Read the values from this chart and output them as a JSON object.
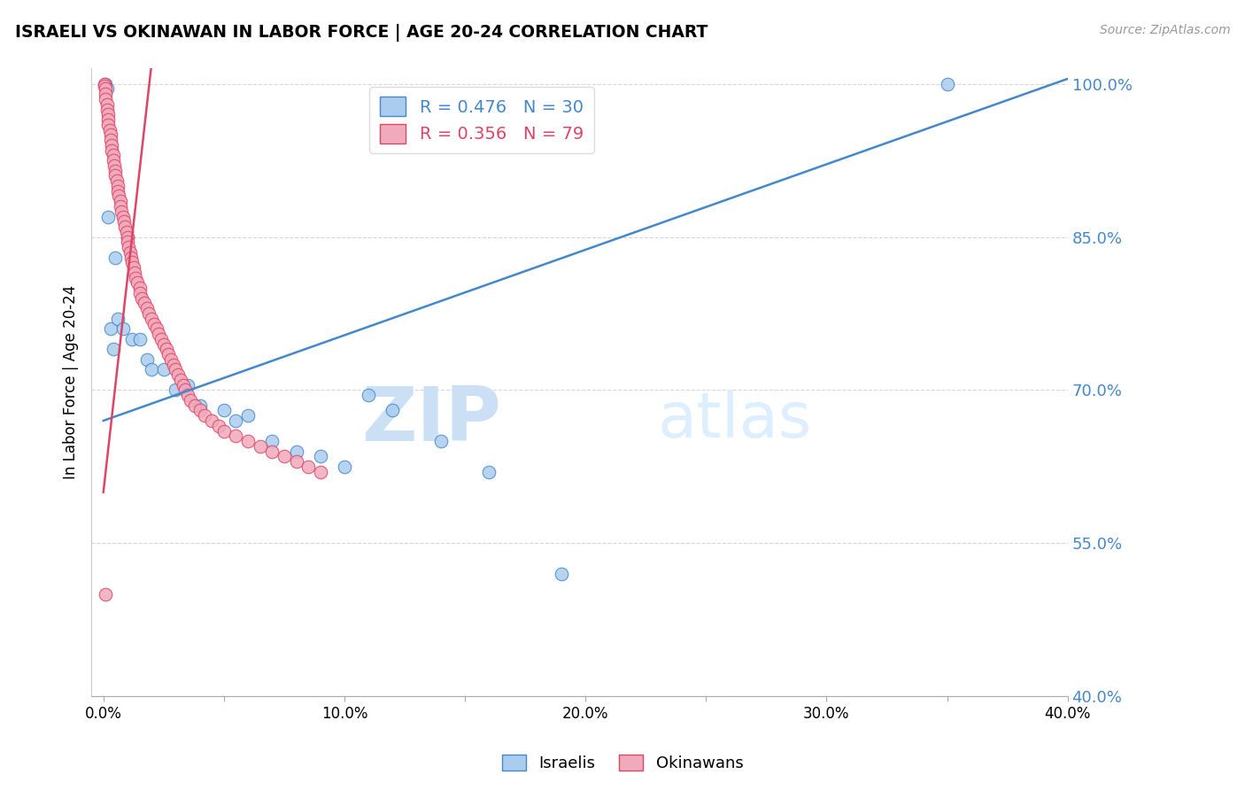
{
  "title": "ISRAELI VS OKINAWAN IN LABOR FORCE | AGE 20-24 CORRELATION CHART",
  "source_text": "Source: ZipAtlas.com",
  "ylabel": "In Labor Force | Age 20-24",
  "xlim": [
    -0.5,
    40.0
  ],
  "ylim": [
    40.0,
    101.5
  ],
  "yticks": [
    40.0,
    55.0,
    70.0,
    85.0,
    100.0
  ],
  "ytick_labels": [
    "40.0%",
    "55.0%",
    "70.0%",
    "85.0%",
    "100.0%"
  ],
  "xticks": [
    0.0,
    5.0,
    10.0,
    15.0,
    20.0,
    25.0,
    30.0,
    35.0,
    40.0
  ],
  "xtick_labels": [
    "0.0%",
    "",
    "10.0%",
    "",
    "20.0%",
    "",
    "30.0%",
    "",
    "40.0%"
  ],
  "israeli_color": "#aaccee",
  "okinawan_color": "#f0aabb",
  "israeli_line_color": "#4488cc",
  "okinawan_line_color": "#dd4466",
  "legend_R_israeli": "R = 0.476",
  "legend_N_israeli": "N = 30",
  "legend_R_okinawan": "R = 0.356",
  "legend_N_okinawan": "N = 79",
  "israeli_x": [
    0.1,
    0.15,
    0.2,
    0.3,
    0.4,
    0.5,
    0.6,
    0.8,
    1.0,
    1.2,
    1.5,
    1.8,
    2.0,
    2.5,
    3.0,
    3.5,
    4.0,
    5.0,
    5.5,
    6.0,
    7.0,
    8.0,
    9.0,
    10.0,
    11.0,
    12.0,
    14.0,
    16.0,
    19.0,
    35.0
  ],
  "israeli_y": [
    100.0,
    99.5,
    87.0,
    76.0,
    74.0,
    83.0,
    77.0,
    76.0,
    85.0,
    75.0,
    75.0,
    73.0,
    72.0,
    72.0,
    70.0,
    70.5,
    68.5,
    68.0,
    67.0,
    67.5,
    65.0,
    64.0,
    63.5,
    62.5,
    69.5,
    68.0,
    65.0,
    62.0,
    52.0,
    100.0
  ],
  "okinawan_x": [
    0.05,
    0.05,
    0.1,
    0.1,
    0.1,
    0.15,
    0.15,
    0.2,
    0.2,
    0.2,
    0.25,
    0.3,
    0.3,
    0.35,
    0.35,
    0.4,
    0.4,
    0.45,
    0.5,
    0.5,
    0.55,
    0.6,
    0.6,
    0.65,
    0.7,
    0.7,
    0.75,
    0.8,
    0.85,
    0.9,
    0.95,
    1.0,
    1.0,
    1.05,
    1.1,
    1.15,
    1.2,
    1.25,
    1.3,
    1.35,
    1.4,
    1.5,
    1.5,
    1.6,
    1.7,
    1.8,
    1.9,
    2.0,
    2.1,
    2.2,
    2.3,
    2.4,
    2.5,
    2.6,
    2.7,
    2.8,
    2.9,
    3.0,
    3.1,
    3.2,
    3.3,
    3.4,
    3.5,
    3.6,
    3.8,
    4.0,
    4.2,
    4.5,
    4.8,
    5.0,
    5.5,
    6.0,
    6.5,
    7.0,
    7.5,
    8.0,
    8.5,
    9.0,
    0.08
  ],
  "okinawan_y": [
    100.0,
    99.8,
    99.5,
    99.0,
    98.5,
    98.0,
    97.5,
    97.0,
    96.5,
    96.0,
    95.5,
    95.0,
    94.5,
    94.0,
    93.5,
    93.0,
    92.5,
    92.0,
    91.5,
    91.0,
    90.5,
    90.0,
    89.5,
    89.0,
    88.5,
    88.0,
    87.5,
    87.0,
    86.5,
    86.0,
    85.5,
    85.0,
    84.5,
    84.0,
    83.5,
    83.0,
    82.5,
    82.0,
    81.5,
    81.0,
    80.5,
    80.0,
    79.5,
    79.0,
    78.5,
    78.0,
    77.5,
    77.0,
    76.5,
    76.0,
    75.5,
    75.0,
    74.5,
    74.0,
    73.5,
    73.0,
    72.5,
    72.0,
    71.5,
    71.0,
    70.5,
    70.0,
    69.5,
    69.0,
    68.5,
    68.0,
    67.5,
    67.0,
    66.5,
    66.0,
    65.5,
    65.0,
    64.5,
    64.0,
    63.5,
    63.0,
    62.5,
    62.0,
    50.0
  ]
}
